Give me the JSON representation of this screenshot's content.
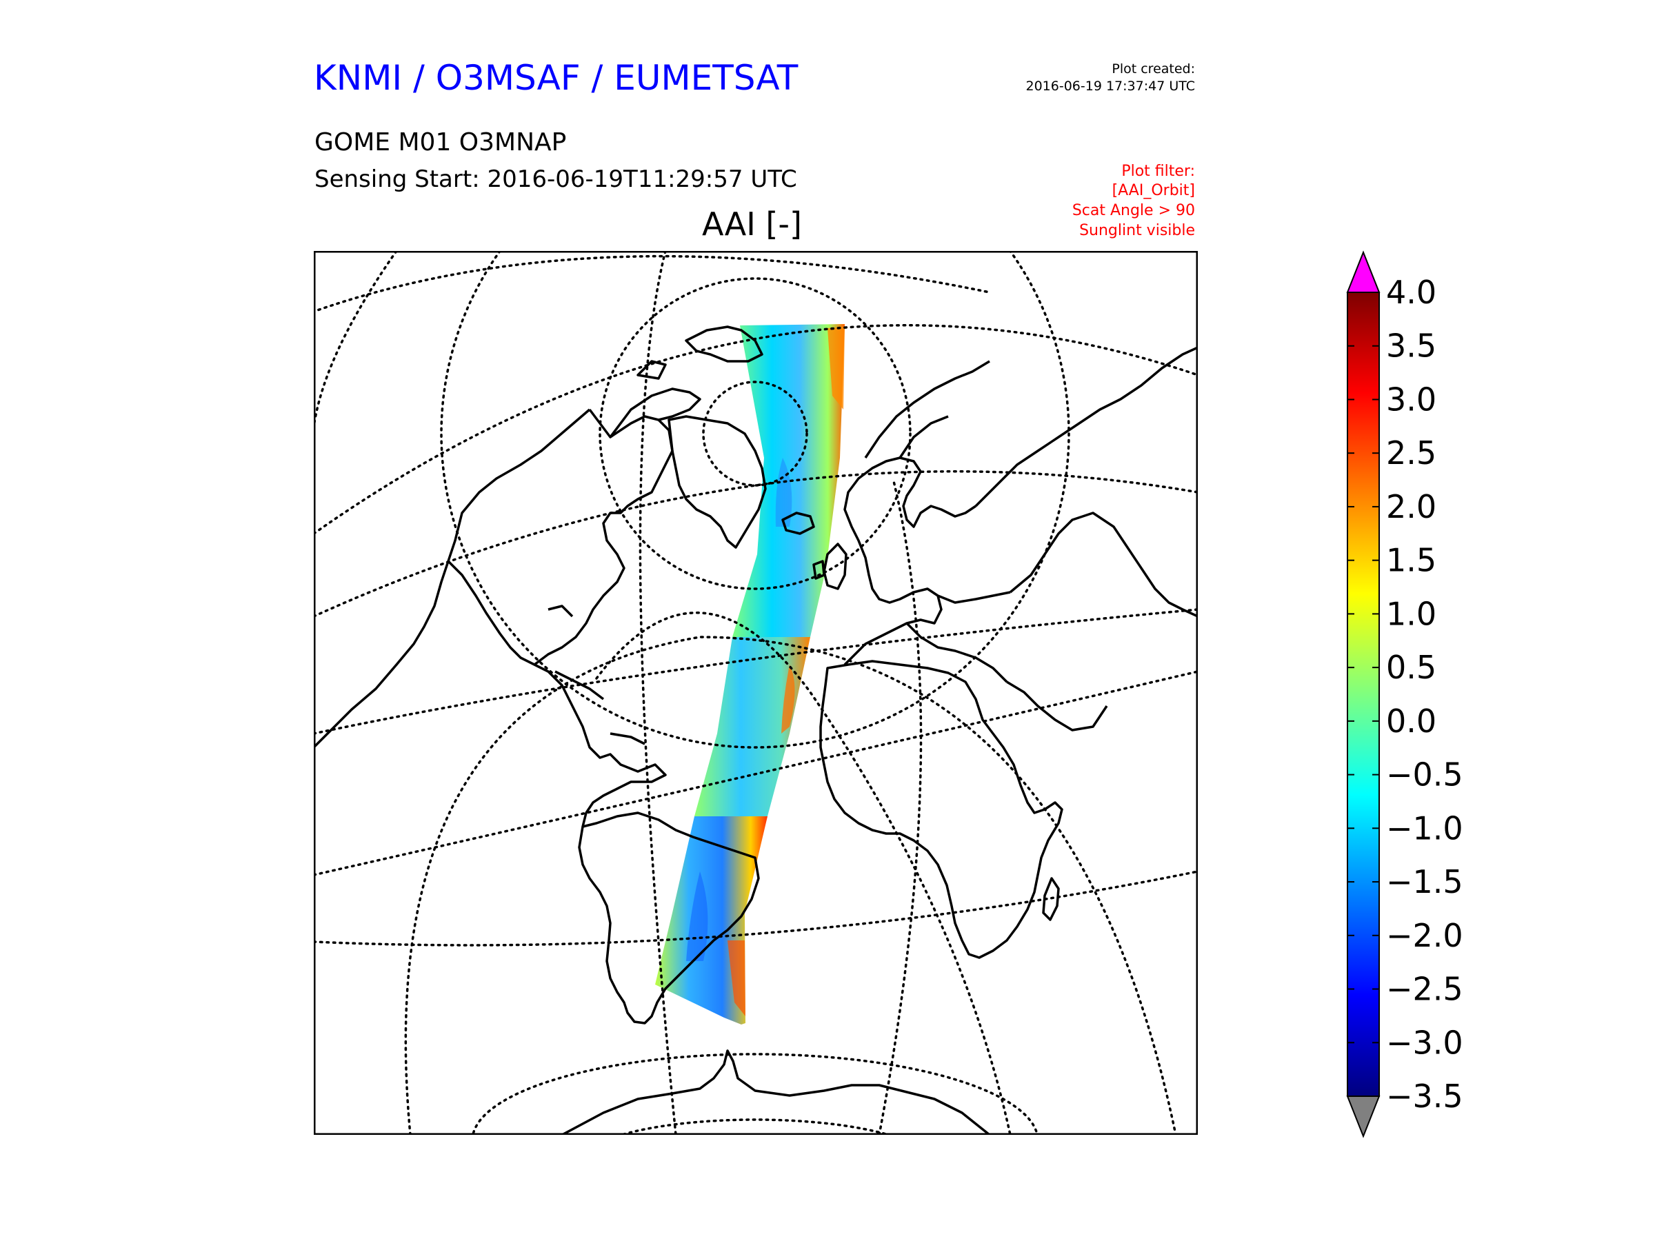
{
  "header": {
    "org_title": "KNMI / O3MSAF / EUMETSAT",
    "plot_created_label": "Plot created:",
    "plot_created_time": "2016-06-19 17:37:47 UTC",
    "product_line": "GOME M01 O3MNAP",
    "sensing_line": "Sensing Start: 2016-06-19T11:29:57 UTC",
    "filter_lines": [
      "Plot filter:",
      "[AAI_Orbit]",
      "Scat Angle > 90",
      "Sunglint visible"
    ],
    "variable_title": "AAI [-]"
  },
  "colorbar": {
    "ticks": [
      "4.0",
      "3.5",
      "3.0",
      "2.5",
      "2.0",
      "1.5",
      "1.0",
      "0.5",
      "0.0",
      "−0.5",
      "−1.0",
      "−1.5",
      "−2.0",
      "−2.5",
      "−3.0",
      "−3.5"
    ],
    "min": -3.5,
    "max": 4.0,
    "over_color": "#ff00ff",
    "under_color": "#808080",
    "stops": [
      "#00007f",
      "#0000ff",
      "#007fff",
      "#00ffff",
      "#7fff7f",
      "#ffff00",
      "#ff7f00",
      "#ff0000",
      "#7f0000"
    ]
  },
  "map": {
    "projection": "orthographic",
    "graticule": "dotted",
    "coastline_color": "#000000"
  }
}
